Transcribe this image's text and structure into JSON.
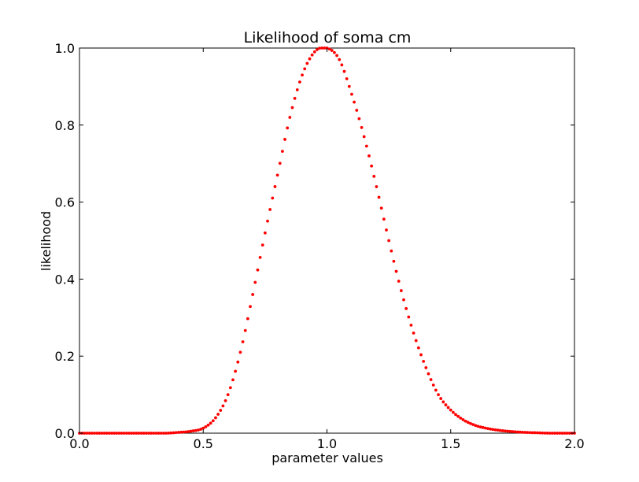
{
  "chart_data": {
    "type": "scatter",
    "title": "Likelihood of soma cm",
    "xlabel": "parameter values",
    "ylabel": "likelihood",
    "xlim": [
      0.0,
      2.0
    ],
    "ylim": [
      0.0,
      1.0
    ],
    "xticks": [
      "0.0",
      "0.5",
      "1.0",
      "1.5",
      "2.0"
    ],
    "yticks": [
      "0.0",
      "0.2",
      "0.4",
      "0.6",
      "0.8",
      "1.0"
    ],
    "grid": false,
    "legend": false,
    "marker_color": "#ff0000",
    "series": [
      {
        "x": [
          0.0,
          0.05,
          0.1,
          0.15,
          0.2,
          0.25,
          0.3,
          0.35,
          0.4,
          0.45,
          0.5,
          0.55,
          0.6,
          0.65,
          0.7,
          0.75,
          0.8,
          0.85,
          0.9,
          0.95,
          1.0,
          1.05,
          1.1,
          1.15,
          1.2,
          1.25,
          1.3,
          1.35,
          1.4,
          1.45,
          1.5,
          1.55,
          1.6,
          1.65,
          1.7,
          1.75,
          1.8,
          1.85,
          1.9,
          1.95,
          2.0
        ],
        "y": [
          0.0,
          0.0,
          0.0,
          0.0,
          0.0,
          0.0,
          0.0,
          0.0,
          0.002,
          0.005,
          0.013,
          0.04,
          0.1,
          0.21,
          0.36,
          0.52,
          0.67,
          0.82,
          0.93,
          0.99,
          1.0,
          0.97,
          0.88,
          0.77,
          0.64,
          0.5,
          0.37,
          0.26,
          0.17,
          0.1,
          0.06,
          0.035,
          0.02,
          0.012,
          0.007,
          0.004,
          0.002,
          0.001,
          0.0,
          0.0,
          0.0
        ]
      }
    ]
  }
}
